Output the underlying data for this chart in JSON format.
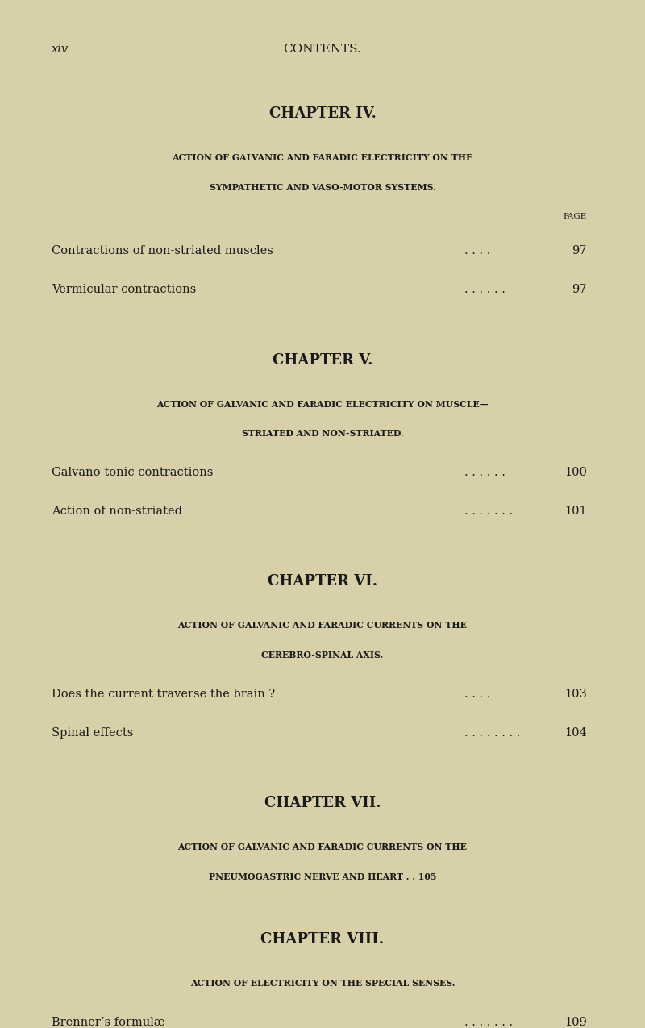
{
  "bg_color": "#d8d0a8",
  "text_color": "#1a1a1a",
  "page_width": 8.0,
  "page_height": 12.75,
  "header_left": "xiv",
  "header_center": "CONTENTS.",
  "chapters": [
    {
      "chapter_title": "CHAPTER IV.",
      "subtitle_lines": [
        "ACTION OF GALVANIC AND FARADIC ELECTRICITY ON THE",
        "SYMPATHETIC AND VASO-MOTOR SYSTEMS."
      ],
      "page_label": "PAGE",
      "entries": [
        {
          "text": "Contractions of non-striated muscles",
          "dots": ". . . .",
          "page": "97"
        },
        {
          "text": "Vermicular contractions",
          "dots": ". . . . . .",
          "page": "97"
        }
      ]
    },
    {
      "chapter_title": "CHAPTER V.",
      "subtitle_lines": [
        "ACTION OF GALVANIC AND FARADIC ELECTRICITY ON MUSCLE—",
        "STRIATED AND NON-STRIATED."
      ],
      "page_label": "",
      "entries": [
        {
          "text": "Galvano-tonic contractions",
          "dots": ". . . . . .",
          "page": "100"
        },
        {
          "text": "Action of non-striated",
          "dots": ". . . . . . .",
          "page": "101"
        }
      ]
    },
    {
      "chapter_title": "CHAPTER VI.",
      "subtitle_lines": [
        "ACTION OF GALVANIC AND FARADIC CURRENTS ON THE",
        "CEREBRO-SPINAL AXIS."
      ],
      "page_label": "",
      "entries": [
        {
          "text": "Does the current traverse the brain ?",
          "dots": ". . . .",
          "page": "103"
        },
        {
          "text": "Spinal effects",
          "dots": ". . . . . . . .",
          "page": "104"
        }
      ]
    },
    {
      "chapter_title": "CHAPTER VII.",
      "subtitle_lines": [
        "ACTION OF GALVANIC AND FARADIC CURRENTS ON THE",
        "PNEUMOGASTRIC NERVE AND HEART . . 105"
      ],
      "page_label": "",
      "entries": []
    },
    {
      "chapter_title": "CHAPTER VIII.",
      "subtitle_lines": [
        "ACTION OF ELECTRICITY ON THE SPECIAL SENSES."
      ],
      "page_label": "",
      "entries": [
        {
          "text": "Brenner’s formulæ",
          "dots": ". . . . . . .",
          "page": "109"
        }
      ]
    }
  ]
}
